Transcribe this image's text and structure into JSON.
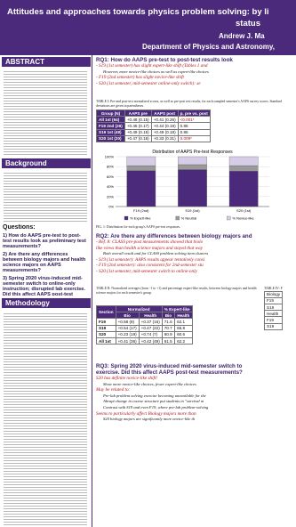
{
  "header": {
    "title": "Attitudes and approaches towards physics problem solving: by li",
    "title_2": "status",
    "author": "Andrew J. Ma",
    "department": "Department of Physics and Astronomy, "
  },
  "left": {
    "abstract_heading": "ABSTRACT",
    "background_heading": "Background",
    "questions_heading": "Questions:",
    "questions": [
      "1) How do AAPS pre-test to post-test results look as preliminary test measurements?",
      "2) Are there any differences between biology majors and health science majors on AAPS measurements?",
      "3) Spring 2020 virus-induced mid-semester switch to online-only instruction; disrupted lab exercise. Did this affect AAPS post-test measurements?"
    ],
    "methodology_heading": "Methodology"
  },
  "rq1": {
    "heading": "RQ1: How do AAPS pre-test to post-test results look",
    "bullets": [
      {
        "text": "- S19 (1st semester) has slight expert-like shift (Tables 1 and",
        "sub": false
      },
      {
        "text": "However, more novice-like choices as well as expert-like choices",
        "sub": true
      },
      {
        "text": "- F19 (2nd semester) has slight novice-like shift",
        "sub": false
      },
      {
        "text": "- S20 (1st semester, mid-semester online-only switch): se",
        "sub": false
      }
    ]
  },
  "table1": {
    "caption": "TABLE I: Pre-and post-test normalized scores, as well as pre-post test results, for each sampled semester's AAPS survey scores. Standard deviations are given in parentheses.",
    "header": [
      "Group (N)",
      "AAPS pre",
      "AAPS post",
      "p, pre vs. post"
    ],
    "rows": [
      [
        "All 1st (94)",
        "+0.48 (0.15)",
        "+0.41 (0.26)",
        "<0.001*"
      ],
      [
        "F19 2nd (26)",
        "+0.45 (0.17)",
        "+0.44 (0.19)",
        "0.85"
      ],
      [
        "S19 1st (48)",
        "+0.49 (0.15)",
        "+0.49 (0.18)",
        "0.85"
      ],
      [
        "S20 1st (20)",
        "+0.47 (0.16)",
        "+0.33 (0.31)",
        "0.009*"
      ]
    ]
  },
  "chart_data": {
    "type": "bar",
    "stacked": true,
    "title": "Distribution of AAPS Pre-test Responses",
    "categories": [
      "F19 (2nd)",
      "S19 (1st)",
      "S20 (1st)"
    ],
    "series": [
      {
        "name": "% Expert-like",
        "color": "#4b2a7b",
        "values": [
          72,
          74,
          71
        ]
      },
      {
        "name": "% Neutral",
        "color": "#9a9a9a",
        "values": [
          10,
          10,
          11
        ]
      },
      {
        "name": "% Novice-like",
        "color": "#d8cde6",
        "values": [
          18,
          16,
          18
        ]
      }
    ],
    "ylim": [
      0,
      100
    ],
    "yticks": [
      {
        "value": 0,
        "label": "0%"
      },
      {
        "value": 20,
        "label": "20%"
      },
      {
        "value": 40,
        "label": "40%"
      },
      {
        "value": 60,
        "label": "60%"
      },
      {
        "value": 80,
        "label": "80%"
      },
      {
        "value": 100,
        "label": "100%"
      }
    ],
    "grid": true,
    "legend": "bottom",
    "caption": "FIG. 1: Distribution for each group's AAPS pre-test responses."
  },
  "rq2": {
    "heading": "RQ2: Are there any differences between biology majors and",
    "bullets": [
      {
        "text": "- Ref. 8: CLASS pre-post measurements showed that biolo",
        "sub": false
      },
      {
        "text": "like views than health science majors and stayed that way",
        "sub": false
      },
      {
        "text": "Both overall result and for CLASS problem solving item clusters",
        "sub": true
      },
      {
        "text": "- S19 (1st semester): AAPS results appear tentatively consi",
        "sub": false
      },
      {
        "text": "- F19 (2nd semester): also consistent for 2nd-semester stu",
        "sub": false
      },
      {
        "text": "- S20 (1st semester, mid-semester switch to online-only",
        "sub": false
      }
    ]
  },
  "table2": {
    "caption": "TABLE II: Normalized averages (from -1 to +1) and percentage expert-like results, between biology majors and health science majors for each semester's group.",
    "header": [
      "Section",
      "Normalized",
      "% Expert-like"
    ],
    "subheader": [
      "Bio",
      "Health",
      "Bio",
      "Health"
    ],
    "rows": [
      [
        "F19",
        "+0.58 (8)",
        "+0.37 (16)",
        "71.6",
        "62.1"
      ],
      [
        "S19",
        "+0.54 (17)",
        "+0.47 (22)",
        "70.7",
        "65.8"
      ],
      [
        "S20",
        "+0.23 (19)",
        "+0.74 (7)",
        "60.9",
        "60.6"
      ],
      [
        "All 1st",
        "+0.41 (36)",
        "+0.42 (49)",
        "61.5",
        "62.2"
      ]
    ]
  },
  "table4": {
    "caption": "TABLE IV: F",
    "rows": [
      "Biology",
      "F19",
      "S19",
      "Health",
      "F19",
      "S19"
    ]
  },
  "rq3": {
    "heading": "RQ3: Spring 2020 virus-induced mid-semester switch to",
    "heading_2": "exercise. Did this affect AAPS post-test measurements?",
    "bullets": [
      {
        "text": "S20 has definite novice-like shift!",
        "sub": false
      },
      {
        "text": "Show more novice-like choices, fewer expert-like choices",
        "sub": true
      },
      {
        "text": "May be related to:",
        "sub": false
      },
      {
        "text": "Pre-lab problem solving exercise becoming unavailable for the",
        "sub": true
      },
      {
        "text": "Abrupt change in course structure put students in \"survival m",
        "sub": true
      },
      {
        "text": "Contrast with S19 and even F19, where pre-lab problem-solving",
        "sub": true
      },
      {
        "text": "Seems to particularly affect Biology majors more than",
        "sub": false
      },
      {
        "text": "S20 biology majors are significantly more novice-like th",
        "sub": true
      }
    ]
  }
}
